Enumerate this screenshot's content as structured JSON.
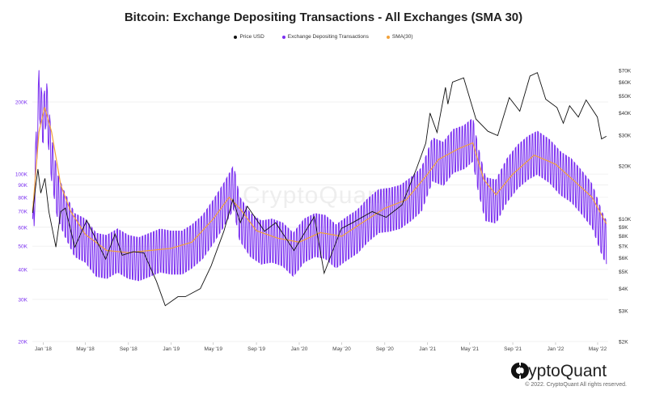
{
  "chart_data": {
    "type": "line",
    "title": "Bitcoin: Exchange Depositing Transactions - All Exchanges (SMA 30)",
    "legend_position": "top-center",
    "grid": true,
    "x_axis": {
      "range": [
        "2017-12-01",
        "2022-05-31"
      ],
      "ticks": [
        {
          "date": "2018-01-01",
          "label": "Jan '18"
        },
        {
          "date": "2018-05-01",
          "label": "May '18"
        },
        {
          "date": "2018-09-01",
          "label": "Sep '18"
        },
        {
          "date": "2019-01-01",
          "label": "Jan '19"
        },
        {
          "date": "2019-05-01",
          "label": "May '19"
        },
        {
          "date": "2019-09-01",
          "label": "Sep '19"
        },
        {
          "date": "2020-01-01",
          "label": "Jan '20"
        },
        {
          "date": "2020-05-01",
          "label": "May '20"
        },
        {
          "date": "2020-09-01",
          "label": "Sep '20"
        },
        {
          "date": "2021-01-01",
          "label": "Jan '21"
        },
        {
          "date": "2021-05-01",
          "label": "May '21"
        },
        {
          "date": "2021-09-01",
          "label": "Sep '21"
        },
        {
          "date": "2022-01-01",
          "label": "Jan '22"
        },
        {
          "date": "2022-05-01",
          "label": "May '22"
        }
      ]
    },
    "y_left": {
      "scale": "log",
      "range": [
        20000,
        250000
      ],
      "color": "#7a2ef0",
      "ticks": [
        {
          "value": 20000,
          "label": "20K"
        },
        {
          "value": 30000,
          "label": "30K"
        },
        {
          "value": 40000,
          "label": "40K"
        },
        {
          "value": 50000,
          "label": "50K"
        },
        {
          "value": 60000,
          "label": "60K"
        },
        {
          "value": 70000,
          "label": "70K"
        },
        {
          "value": 80000,
          "label": "80K"
        },
        {
          "value": 90000,
          "label": "90K"
        },
        {
          "value": 100000,
          "label": "100K"
        },
        {
          "value": 200000,
          "label": "200K"
        }
      ]
    },
    "y_right": {
      "scale": "log",
      "range": [
        2000,
        80000
      ],
      "color": "#333333",
      "ticks": [
        {
          "value": 2000,
          "label": "$2K"
        },
        {
          "value": 3000,
          "label": "$3K"
        },
        {
          "value": 4000,
          "label": "$4K"
        },
        {
          "value": 5000,
          "label": "$5K"
        },
        {
          "value": 6000,
          "label": "$6K"
        },
        {
          "value": 7000,
          "label": "$7K"
        },
        {
          "value": 8000,
          "label": "$8K"
        },
        {
          "value": 9000,
          "label": "$9K"
        },
        {
          "value": 10000,
          "label": "$10K"
        },
        {
          "value": 20000,
          "label": "$20K"
        },
        {
          "value": 30000,
          "label": "$30K"
        },
        {
          "value": 40000,
          "label": "$40K"
        },
        {
          "value": 50000,
          "label": "$50K"
        },
        {
          "value": 60000,
          "label": "$60K"
        },
        {
          "value": 70000,
          "label": "$70K"
        }
      ]
    },
    "series": [
      {
        "name": "Price USD",
        "axis": "right",
        "color": "#111111",
        "points": [
          [
            "2017-12-02",
            10800
          ],
          [
            "2017-12-10",
            15000
          ],
          [
            "2017-12-17",
            19200
          ],
          [
            "2017-12-25",
            14000
          ],
          [
            "2018-01-06",
            17000
          ],
          [
            "2018-01-17",
            11000
          ],
          [
            "2018-02-06",
            6900
          ],
          [
            "2018-02-20",
            11000
          ],
          [
            "2018-03-05",
            11500
          ],
          [
            "2018-04-01",
            6900
          ],
          [
            "2018-05-05",
            9800
          ],
          [
            "2018-06-28",
            5900
          ],
          [
            "2018-07-25",
            8200
          ],
          [
            "2018-08-14",
            6200
          ],
          [
            "2018-09-15",
            6500
          ],
          [
            "2018-10-15",
            6400
          ],
          [
            "2018-11-20",
            4400
          ],
          [
            "2018-12-15",
            3200
          ],
          [
            "2019-01-20",
            3600
          ],
          [
            "2019-02-10",
            3600
          ],
          [
            "2019-03-25",
            4000
          ],
          [
            "2019-04-25",
            5400
          ],
          [
            "2019-05-31",
            8500
          ],
          [
            "2019-06-26",
            12900
          ],
          [
            "2019-07-17",
            9500
          ],
          [
            "2019-08-06",
            11800
          ],
          [
            "2019-09-24",
            8500
          ],
          [
            "2019-10-26",
            9500
          ],
          [
            "2019-12-17",
            6600
          ],
          [
            "2020-02-13",
            10300
          ],
          [
            "2020-03-12",
            4900
          ],
          [
            "2020-04-30",
            8800
          ],
          [
            "2020-06-01",
            9500
          ],
          [
            "2020-07-27",
            11000
          ],
          [
            "2020-09-05",
            10200
          ],
          [
            "2020-10-20",
            12000
          ],
          [
            "2020-11-30",
            19200
          ],
          [
            "2020-12-27",
            27000
          ],
          [
            "2021-01-08",
            40000
          ],
          [
            "2021-01-28",
            31000
          ],
          [
            "2021-02-21",
            56000
          ],
          [
            "2021-02-28",
            45000
          ],
          [
            "2021-03-13",
            60000
          ],
          [
            "2021-04-14",
            63500
          ],
          [
            "2021-05-19",
            37000
          ],
          [
            "2021-06-22",
            31500
          ],
          [
            "2021-07-20",
            29800
          ],
          [
            "2021-08-22",
            49000
          ],
          [
            "2021-09-21",
            41000
          ],
          [
            "2021-10-20",
            65000
          ],
          [
            "2021-11-10",
            68000
          ],
          [
            "2021-12-04",
            48000
          ],
          [
            "2022-01-05",
            43000
          ],
          [
            "2022-01-23",
            35000
          ],
          [
            "2022-02-10",
            44000
          ],
          [
            "2022-03-07",
            38000
          ],
          [
            "2022-03-29",
            47500
          ],
          [
            "2022-04-30",
            38000
          ],
          [
            "2022-05-12",
            28500
          ],
          [
            "2022-05-26",
            29500
          ]
        ]
      },
      {
        "name": "Exchange Depositing Transactions",
        "axis": "left",
        "color": "#7a2ef0",
        "points": [
          [
            "2017-12-02",
            55000
          ],
          [
            "2017-12-10",
            110000
          ],
          [
            "2017-12-20",
            230000
          ],
          [
            "2017-12-31",
            170000
          ],
          [
            "2018-01-10",
            210000
          ],
          [
            "2018-01-25",
            120000
          ],
          [
            "2018-02-10",
            85000
          ],
          [
            "2018-03-01",
            72000
          ],
          [
            "2018-04-01",
            58000
          ],
          [
            "2018-05-01",
            55000
          ],
          [
            "2018-06-01",
            48000
          ],
          [
            "2018-07-01",
            47000
          ],
          [
            "2018-08-01",
            50000
          ],
          [
            "2018-09-01",
            47000
          ],
          [
            "2018-10-01",
            46000
          ],
          [
            "2018-11-01",
            48000
          ],
          [
            "2018-12-01",
            50000
          ],
          [
            "2019-01-01",
            49000
          ],
          [
            "2019-02-01",
            49000
          ],
          [
            "2019-03-01",
            52000
          ],
          [
            "2019-04-01",
            57000
          ],
          [
            "2019-05-01",
            66000
          ],
          [
            "2019-06-01",
            78000
          ],
          [
            "2019-06-28",
            92000
          ],
          [
            "2019-07-15",
            68000
          ],
          [
            "2019-08-15",
            58000
          ],
          [
            "2019-09-15",
            54000
          ],
          [
            "2019-10-15",
            55000
          ],
          [
            "2019-11-15",
            53000
          ],
          [
            "2019-12-15",
            48000
          ],
          [
            "2020-01-15",
            55000
          ],
          [
            "2020-02-15",
            58000
          ],
          [
            "2020-03-15",
            57000
          ],
          [
            "2020-04-15",
            52000
          ],
          [
            "2020-05-15",
            56000
          ],
          [
            "2020-06-15",
            60000
          ],
          [
            "2020-07-15",
            67000
          ],
          [
            "2020-08-15",
            73000
          ],
          [
            "2020-09-15",
            74000
          ],
          [
            "2020-10-15",
            76000
          ],
          [
            "2020-11-15",
            82000
          ],
          [
            "2020-12-15",
            90000
          ],
          [
            "2021-01-15",
            120000
          ],
          [
            "2021-02-15",
            115000
          ],
          [
            "2021-03-15",
            130000
          ],
          [
            "2021-04-15",
            135000
          ],
          [
            "2021-05-10",
            145000
          ],
          [
            "2021-05-25",
            110000
          ],
          [
            "2021-06-15",
            82000
          ],
          [
            "2021-07-15",
            80000
          ],
          [
            "2021-08-15",
            98000
          ],
          [
            "2021-09-15",
            112000
          ],
          [
            "2021-10-15",
            122000
          ],
          [
            "2021-11-10",
            128000
          ],
          [
            "2021-12-15",
            118000
          ],
          [
            "2022-01-15",
            105000
          ],
          [
            "2022-02-15",
            98000
          ],
          [
            "2022-03-15",
            88000
          ],
          [
            "2022-04-15",
            77000
          ],
          [
            "2022-05-15",
            58000
          ],
          [
            "2022-05-26",
            54000
          ]
        ]
      },
      {
        "name": "SMA(30)",
        "axis": "left",
        "color": "#f2a23a",
        "points": [
          [
            "2017-12-02",
            70000
          ],
          [
            "2017-12-20",
            150000
          ],
          [
            "2018-01-05",
            190000
          ],
          [
            "2018-01-25",
            150000
          ],
          [
            "2018-02-20",
            90000
          ],
          [
            "2018-03-20",
            70000
          ],
          [
            "2018-05-01",
            56000
          ],
          [
            "2018-07-01",
            48000
          ],
          [
            "2018-09-01",
            47000
          ],
          [
            "2018-11-01",
            48000
          ],
          [
            "2019-01-01",
            49000
          ],
          [
            "2019-03-01",
            52000
          ],
          [
            "2019-05-01",
            65000
          ],
          [
            "2019-06-15",
            80000
          ],
          [
            "2019-07-15",
            72000
          ],
          [
            "2019-09-01",
            58000
          ],
          [
            "2019-11-01",
            54000
          ],
          [
            "2020-01-01",
            52000
          ],
          [
            "2020-03-01",
            57000
          ],
          [
            "2020-05-01",
            55000
          ],
          [
            "2020-07-01",
            63000
          ],
          [
            "2020-09-01",
            72000
          ],
          [
            "2020-11-01",
            78000
          ],
          [
            "2021-01-01",
            100000
          ],
          [
            "2021-02-01",
            115000
          ],
          [
            "2021-04-01",
            128000
          ],
          [
            "2021-05-10",
            135000
          ],
          [
            "2021-06-10",
            95000
          ],
          [
            "2021-07-15",
            82000
          ],
          [
            "2021-09-01",
            100000
          ],
          [
            "2021-11-01",
            120000
          ],
          [
            "2022-01-01",
            110000
          ],
          [
            "2022-03-01",
            92000
          ],
          [
            "2022-04-15",
            80000
          ],
          [
            "2022-05-26",
            62000
          ]
        ]
      }
    ]
  },
  "brand": {
    "name": "CryptoQuant",
    "watermark": "CryptoQuant",
    "copyright": "© 2022. CryptoQuant All rights reserved."
  }
}
